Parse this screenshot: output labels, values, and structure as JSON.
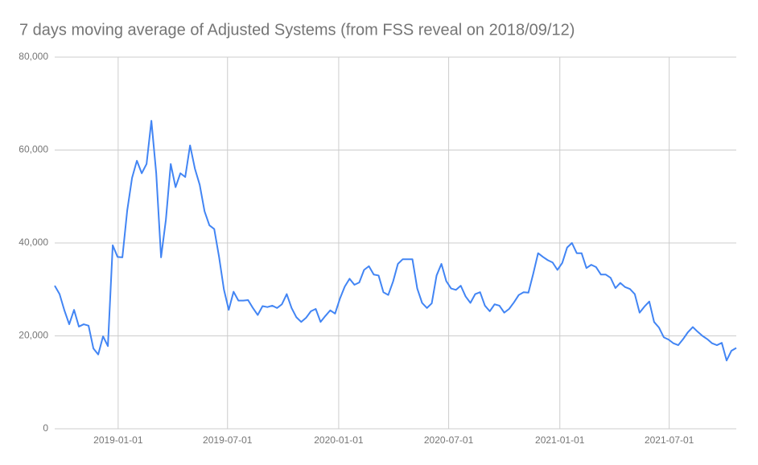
{
  "chart_data": {
    "type": "line",
    "title": "7 days moving average of Adjusted Systems (from FSS reveal on 2018/09/12)",
    "color": "#4285f4",
    "grid": true,
    "x": [
      "2018-09-18",
      "2018-09-26",
      "2018-10-04",
      "2018-10-12",
      "2018-10-20",
      "2018-10-28",
      "2018-11-05",
      "2018-11-13",
      "2018-11-21",
      "2018-11-29",
      "2018-12-07",
      "2018-12-15",
      "2018-12-23",
      "2018-12-31",
      "2019-01-08",
      "2019-01-16",
      "2019-01-24",
      "2019-02-01",
      "2019-02-09",
      "2019-02-17",
      "2019-02-25",
      "2019-03-05",
      "2019-03-13",
      "2019-03-21",
      "2019-03-29",
      "2019-04-06",
      "2019-04-14",
      "2019-04-22",
      "2019-04-30",
      "2019-05-08",
      "2019-05-16",
      "2019-05-24",
      "2019-06-01",
      "2019-06-09",
      "2019-06-17",
      "2019-06-25",
      "2019-07-03",
      "2019-07-11",
      "2019-07-19",
      "2019-07-27",
      "2019-08-04",
      "2019-08-12",
      "2019-08-20",
      "2019-08-28",
      "2019-09-05",
      "2019-09-13",
      "2019-09-21",
      "2019-09-29",
      "2019-10-07",
      "2019-10-15",
      "2019-10-23",
      "2019-10-31",
      "2019-11-08",
      "2019-11-16",
      "2019-11-24",
      "2019-12-02",
      "2019-12-10",
      "2019-12-18",
      "2019-12-26",
      "2020-01-03",
      "2020-01-11",
      "2020-01-19",
      "2020-01-27",
      "2020-02-04",
      "2020-02-12",
      "2020-02-20",
      "2020-02-28",
      "2020-03-07",
      "2020-03-15",
      "2020-03-23",
      "2020-03-31",
      "2020-04-08",
      "2020-04-16",
      "2020-04-24",
      "2020-05-02",
      "2020-05-10",
      "2020-05-18",
      "2020-05-26",
      "2020-06-03",
      "2020-06-11",
      "2020-06-19",
      "2020-06-27",
      "2020-07-05",
      "2020-07-13",
      "2020-07-21",
      "2020-07-29",
      "2020-08-06",
      "2020-08-14",
      "2020-08-22",
      "2020-08-30",
      "2020-09-07",
      "2020-09-15",
      "2020-09-23",
      "2020-10-01",
      "2020-10-09",
      "2020-10-17",
      "2020-10-25",
      "2020-11-02",
      "2020-11-10",
      "2020-11-18",
      "2020-11-26",
      "2020-12-04",
      "2020-12-12",
      "2020-12-20",
      "2020-12-28",
      "2021-01-05",
      "2021-01-13",
      "2021-01-21",
      "2021-01-29",
      "2021-02-06",
      "2021-02-14",
      "2021-02-22",
      "2021-03-02",
      "2021-03-10",
      "2021-03-18",
      "2021-03-26",
      "2021-04-03",
      "2021-04-11",
      "2021-04-19",
      "2021-04-27",
      "2021-05-05",
      "2021-05-13",
      "2021-05-21",
      "2021-05-29",
      "2021-06-06",
      "2021-06-14",
      "2021-06-22",
      "2021-06-30",
      "2021-07-08",
      "2021-07-16",
      "2021-07-24",
      "2021-08-01",
      "2021-08-09",
      "2021-08-17",
      "2021-08-25",
      "2021-09-02",
      "2021-09-10",
      "2021-09-18",
      "2021-09-26",
      "2021-10-04",
      "2021-10-12",
      "2021-10-20"
    ],
    "values": [
      30800,
      29000,
      25500,
      22500,
      25600,
      22000,
      22500,
      22200,
      17300,
      16000,
      19900,
      17800,
      39500,
      37000,
      36900,
      47000,
      54000,
      57700,
      55000,
      57000,
      66300,
      55000,
      36900,
      45000,
      57000,
      52000,
      55000,
      54200,
      61000,
      56000,
      52500,
      46800,
      43800,
      43000,
      37000,
      30000,
      25600,
      29500,
      27600,
      27600,
      27700,
      26000,
      24500,
      26400,
      26200,
      26500,
      26000,
      26800,
      29000,
      26000,
      24000,
      23000,
      23900,
      25300,
      25800,
      23000,
      24300,
      25500,
      24800,
      28000,
      30600,
      32300,
      31000,
      31500,
      34200,
      35000,
      33200,
      33000,
      29400,
      28800,
      31700,
      35500,
      36500,
      36500,
      36500,
      30200,
      27100,
      26000,
      27000,
      33000,
      35500,
      31800,
      30200,
      29900,
      30800,
      28500,
      27100,
      29000,
      29400,
      26500,
      25300,
      26800,
      26500,
      25000,
      25800,
      27200,
      28800,
      29400,
      29300,
      33400,
      37800,
      37000,
      36300,
      35800,
      34200,
      35700,
      39000,
      40000,
      37800,
      37800,
      34600,
      35300,
      34800,
      33200,
      33200,
      32500,
      30300,
      31400,
      30500,
      30100,
      29000,
      25000,
      26300,
      27400,
      23000,
      21800,
      19700,
      19200,
      18400,
      18000,
      19300,
      20800,
      21900,
      20900,
      20000,
      19300,
      18400,
      18000,
      18500,
      14700,
      16800,
      17400
    ],
    "xlim": [
      "2018-09-18",
      "2021-10-20"
    ],
    "xticks": [
      "2019-01-01",
      "2019-07-01",
      "2020-01-01",
      "2020-07-01",
      "2021-01-01",
      "2021-07-01"
    ],
    "ylim": [
      0,
      80000
    ],
    "yticks": [
      0,
      {
        "value": 20000,
        "label": "20,000"
      },
      {
        "value": 40000,
        "label": "40,000"
      },
      {
        "value": 60000,
        "label": "60,000"
      },
      {
        "value": 80000,
        "label": "80,000"
      }
    ]
  }
}
